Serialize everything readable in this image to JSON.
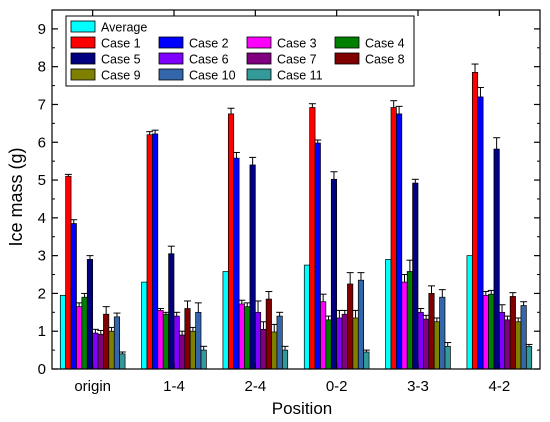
{
  "chart_data": {
    "type": "bar",
    "xlabel": "Position",
    "ylabel": "Ice mass (g)",
    "ylim": [
      0,
      9.5
    ],
    "yticks": [
      0,
      1,
      2,
      3,
      4,
      5,
      6,
      7,
      8,
      9
    ],
    "grid": false,
    "legend_position": "top-left",
    "legend_columns": 4,
    "categories": [
      "origin",
      "1-4",
      "2-4",
      "0-2",
      "3-3",
      "4-2"
    ],
    "series": [
      {
        "name": "Average",
        "color": "#00ffff",
        "values": [
          1.95,
          2.3,
          2.58,
          2.75,
          2.9,
          3.0
        ],
        "errors": [
          0,
          0,
          0,
          0,
          0,
          0
        ]
      },
      {
        "name": "Case 1",
        "color": "#ff0000",
        "values": [
          5.1,
          6.2,
          6.75,
          6.92,
          6.92,
          7.85
        ],
        "errors": [
          0.05,
          0.08,
          0.15,
          0.1,
          0.18,
          0.22
        ]
      },
      {
        "name": "Case 2",
        "color": "#0000ff",
        "values": [
          3.85,
          6.22,
          5.58,
          5.98,
          6.75,
          7.2
        ],
        "errors": [
          0.1,
          0.1,
          0.15,
          0.08,
          0.2,
          0.25
        ]
      },
      {
        "name": "Case 3",
        "color": "#ff00ff",
        "values": [
          1.65,
          1.55,
          1.72,
          1.78,
          2.3,
          1.95
        ],
        "errors": [
          0.1,
          0.05,
          0.1,
          0.2,
          0.2,
          0.1
        ]
      },
      {
        "name": "Case 4",
        "color": "#008000",
        "values": [
          1.9,
          1.45,
          1.65,
          1.3,
          2.58,
          1.98
        ],
        "errors": [
          0.1,
          0.05,
          0.1,
          0.1,
          0.3,
          0.1
        ]
      },
      {
        "name": "Case 5",
        "color": "#000080",
        "values": [
          2.9,
          3.05,
          5.4,
          5.02,
          4.92,
          5.82
        ],
        "errors": [
          0.1,
          0.2,
          0.2,
          0.2,
          0.1,
          0.3
        ]
      },
      {
        "name": "Case 6",
        "color": "#8000ff",
        "values": [
          0.95,
          1.4,
          1.5,
          1.35,
          1.5,
          1.5
        ],
        "errors": [
          0.1,
          0.1,
          0.3,
          0.2,
          0.1,
          0.2
        ]
      },
      {
        "name": "Case 7",
        "color": "#800080",
        "values": [
          0.92,
          0.9,
          1.05,
          1.45,
          1.32,
          1.3
        ],
        "errors": [
          0.1,
          0.1,
          0.2,
          0.1,
          0.1,
          0.1
        ]
      },
      {
        "name": "Case 8",
        "color": "#800000",
        "values": [
          1.45,
          1.6,
          1.85,
          2.25,
          2.0,
          1.92
        ],
        "errors": [
          0.2,
          0.2,
          0.2,
          0.3,
          0.2,
          0.1
        ]
      },
      {
        "name": "Case 9",
        "color": "#808000",
        "values": [
          1.0,
          1.0,
          0.98,
          1.35,
          1.25,
          1.25
        ],
        "errors": [
          0.1,
          0.1,
          0.2,
          0.2,
          0.1,
          0.1
        ]
      },
      {
        "name": "Case 10",
        "color": "#3366aa",
        "values": [
          1.38,
          1.5,
          1.4,
          2.35,
          1.9,
          1.68
        ],
        "errors": [
          0.1,
          0.25,
          0.1,
          0.2,
          0.2,
          0.1
        ]
      },
      {
        "name": "Case 11",
        "color": "#339999",
        "values": [
          0.4,
          0.5,
          0.5,
          0.45,
          0.6,
          0.6
        ],
        "errors": [
          0.05,
          0.1,
          0.1,
          0.05,
          0.1,
          0.05
        ]
      }
    ]
  }
}
